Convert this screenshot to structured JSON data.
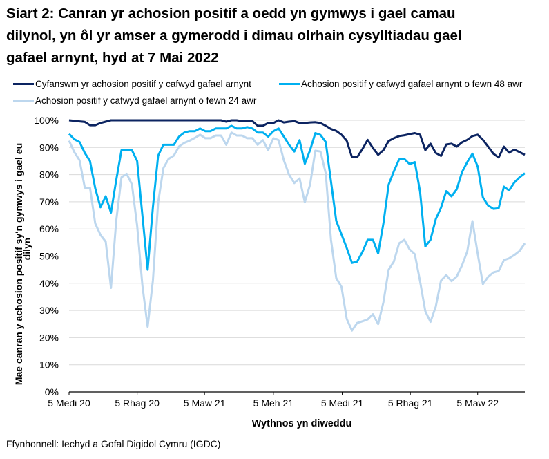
{
  "chart_data": {
    "type": "line",
    "title_lines": [
      "Siart 2: Canran yr achosion positif a oedd yn gymwys i gael camau",
      "dilynol, yn ôl yr amser a gymerodd i dimau olrhain cysylltiadau gael",
      "gafael arnynt, hyd at 7 Mai 2022"
    ],
    "xlabel": "Wythnos yn diweddu",
    "ylabel_lines": [
      "Mae canran y achosion positif sy'n gymwys i gael eu",
      "dilyn"
    ],
    "ylim": [
      0,
      100
    ],
    "yticks": [
      0,
      10,
      20,
      30,
      40,
      50,
      60,
      70,
      80,
      90,
      100
    ],
    "ytick_labels": [
      "0%",
      "10%",
      "20%",
      "30%",
      "40%",
      "50%",
      "60%",
      "70%",
      "80%",
      "90%",
      "100%"
    ],
    "xticks": [
      "2020-09-05",
      "2020-12-05",
      "2021-03-05",
      "2021-06-05",
      "2021-09-05",
      "2021-12-05",
      "2022-03-05"
    ],
    "xtick_labels": [
      "5 Medi 20",
      "5 Rhag 20",
      "5 Maw 21",
      "5 Meh 21",
      "5 Medi 21",
      "5 Rhag 21",
      "5 Maw 22"
    ],
    "grid": "horizontal",
    "legend_position": "top",
    "x": [
      "2020-09-05",
      "2020-09-12",
      "2020-09-19",
      "2020-09-26",
      "2020-10-03",
      "2020-10-10",
      "2020-10-17",
      "2020-10-24",
      "2020-10-31",
      "2020-11-07",
      "2020-11-14",
      "2020-11-21",
      "2020-11-28",
      "2020-12-05",
      "2020-12-12",
      "2020-12-19",
      "2020-12-26",
      "2021-01-02",
      "2021-01-09",
      "2021-01-16",
      "2021-01-23",
      "2021-01-30",
      "2021-02-06",
      "2021-02-13",
      "2021-02-20",
      "2021-02-27",
      "2021-03-06",
      "2021-03-13",
      "2021-03-20",
      "2021-03-27",
      "2021-04-03",
      "2021-04-10",
      "2021-04-17",
      "2021-04-24",
      "2021-05-01",
      "2021-05-08",
      "2021-05-15",
      "2021-05-22",
      "2021-05-29",
      "2021-06-05",
      "2021-06-12",
      "2021-06-19",
      "2021-06-26",
      "2021-07-03",
      "2021-07-10",
      "2021-07-17",
      "2021-07-24",
      "2021-07-31",
      "2021-08-07",
      "2021-08-14",
      "2021-08-21",
      "2021-08-28",
      "2021-09-04",
      "2021-09-11",
      "2021-09-18",
      "2021-09-25",
      "2021-10-02",
      "2021-10-09",
      "2021-10-16",
      "2021-10-23",
      "2021-10-30",
      "2021-11-06",
      "2021-11-13",
      "2021-11-20",
      "2021-11-27",
      "2021-12-04",
      "2021-12-11",
      "2021-12-18",
      "2021-12-25",
      "2022-01-01",
      "2022-01-08",
      "2022-01-15",
      "2022-01-22",
      "2022-01-29",
      "2022-02-05",
      "2022-02-12",
      "2022-02-19",
      "2022-02-26",
      "2022-03-05",
      "2022-03-12",
      "2022-03-19",
      "2022-03-26",
      "2022-04-02",
      "2022-04-09",
      "2022-04-16",
      "2022-04-23",
      "2022-04-30",
      "2022-05-07"
    ],
    "series": [
      {
        "name": "Cyfanswm yr achosion positif y cafwyd gafael arnynt",
        "color": "#0c2461",
        "values": [
          100,
          99.8,
          99.6,
          99.4,
          98.2,
          98.2,
          99,
          99.5,
          100,
          100,
          100,
          100,
          100,
          100,
          100,
          100,
          100,
          100,
          100,
          100,
          100,
          100,
          100,
          100,
          100,
          100,
          100,
          100,
          100,
          100,
          99.5,
          100,
          100,
          99.7,
          99.7,
          99.7,
          98,
          98,
          99,
          99,
          100,
          99.2,
          99.5,
          99.7,
          99,
          99,
          99.2,
          99.3,
          99,
          98,
          96.8,
          96.1,
          94.7,
          92.5,
          86.4,
          86.4,
          89.4,
          92.8,
          89.8,
          87.3,
          89,
          92.4,
          93.4,
          94.2,
          94.5,
          94.9,
          95.3,
          94.7,
          89,
          91.4,
          88,
          86.9,
          91.1,
          91.4,
          90.3,
          91.9,
          92.8,
          94.2,
          94.7,
          92.8,
          90.3,
          87.7,
          86.3,
          90.3,
          88.1,
          89.2,
          88.3,
          87.3
        ]
      },
      {
        "name": "Achosion positif y cafwyd gafael arnynt o fewn 48 awr",
        "color": "#00b0f0",
        "values": [
          95,
          93,
          92,
          88,
          85,
          75,
          68,
          72,
          66,
          78,
          89,
          89,
          89,
          85,
          65,
          45,
          68,
          87,
          91,
          91,
          91,
          94,
          95.5,
          96,
          96,
          97,
          96,
          96,
          97,
          97,
          97,
          98,
          97,
          97,
          97.5,
          97,
          95.5,
          95.5,
          94,
          96,
          97,
          94,
          91,
          88.5,
          92.7,
          84,
          89,
          95.3,
          94.6,
          92,
          77.5,
          63,
          58,
          53,
          47.5,
          48,
          51.5,
          56,
          56,
          51,
          62,
          76.3,
          81.2,
          85.6,
          85.8,
          83.9,
          84.6,
          73.7,
          53.6,
          56,
          63.6,
          67.8,
          73.9,
          72,
          74.6,
          80.9,
          84.6,
          87.7,
          83,
          71.6,
          68.6,
          67.4,
          67.6,
          75.6,
          74.2,
          77.1,
          79,
          80.5
        ]
      },
      {
        "name": "Achosion positif y cafwyd gafael arnynt o fewn 24 awr",
        "color": "#bdd7ee",
        "values": [
          92.5,
          88.3,
          85.3,
          75.2,
          75.2,
          62,
          57.8,
          55.3,
          38.3,
          63,
          79,
          80.3,
          76.4,
          61.2,
          39.2,
          24,
          41,
          69.7,
          82.4,
          85.8,
          87,
          90.4,
          91.7,
          92.5,
          93.5,
          94.7,
          93.4,
          93.4,
          94.4,
          94.4,
          91,
          95.5,
          94.4,
          94.4,
          93.4,
          93.4,
          91,
          92.7,
          89,
          93.4,
          92.7,
          85.3,
          80,
          76.9,
          78.6,
          69.8,
          76.3,
          88.8,
          88.5,
          80.5,
          56,
          41.9,
          38.7,
          26.9,
          22.6,
          25.4,
          26,
          26.7,
          28.6,
          25,
          33,
          45,
          48,
          54.7,
          56,
          52.5,
          50.7,
          40.7,
          29.7,
          25.8,
          31.4,
          41,
          43,
          40.8,
          42.5,
          46.6,
          51.7,
          62.9,
          51,
          39.7,
          42.4,
          44,
          44.5,
          48.5,
          49.2,
          50.4,
          51.9,
          54.7
        ]
      }
    ]
  },
  "footer": "Ffynhonnell: Iechyd a Gofal Digidol Cymru (IGDC)"
}
